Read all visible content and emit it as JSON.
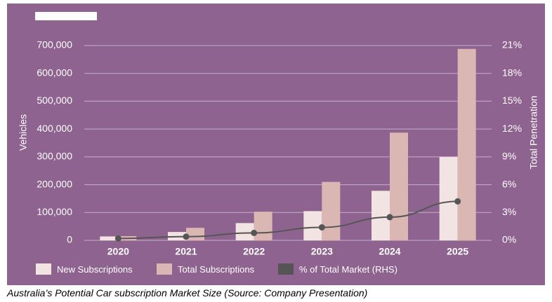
{
  "caption": "Australia’s Potential Car subscription Market Size (Source: Company Presentation)",
  "colors": {
    "background": "#8e6390",
    "new_subscriptions": "#f2e4e2",
    "total_subscriptions": "#dbb7b3",
    "market_share_line": "#555555",
    "gridline": "#c7afc8"
  },
  "chart_data": {
    "type": "bar",
    "title": "",
    "categories": [
      "2020",
      "2021",
      "2022",
      "2023",
      "2024",
      "2025"
    ],
    "ylabel": "Vehicles",
    "y2label": "Total Penetration",
    "ylim": [
      0,
      700000
    ],
    "y2lim": [
      0,
      21
    ],
    "yticks": [
      "0",
      "100,000",
      "200,000",
      "300,000",
      "400,000",
      "500,000",
      "600,000",
      "700,000"
    ],
    "y2ticks": [
      "0%",
      "3%",
      "6%",
      "9%",
      "12%",
      "15%",
      "18%",
      "21%"
    ],
    "grid": true,
    "legend_position": "bottom",
    "series": [
      {
        "name": "New Subscriptions",
        "type": "bar",
        "axis": "left",
        "values": [
          14000,
          30000,
          62000,
          105000,
          178000,
          300000
        ]
      },
      {
        "name": "Total Subscriptions",
        "type": "bar",
        "axis": "left",
        "values": [
          15000,
          45000,
          103000,
          210000,
          387000,
          688000
        ]
      },
      {
        "name": "% of Total Market (RHS)",
        "type": "line",
        "axis": "right",
        "values": [
          0.2,
          0.4,
          0.8,
          1.4,
          2.5,
          4.2
        ]
      }
    ]
  }
}
